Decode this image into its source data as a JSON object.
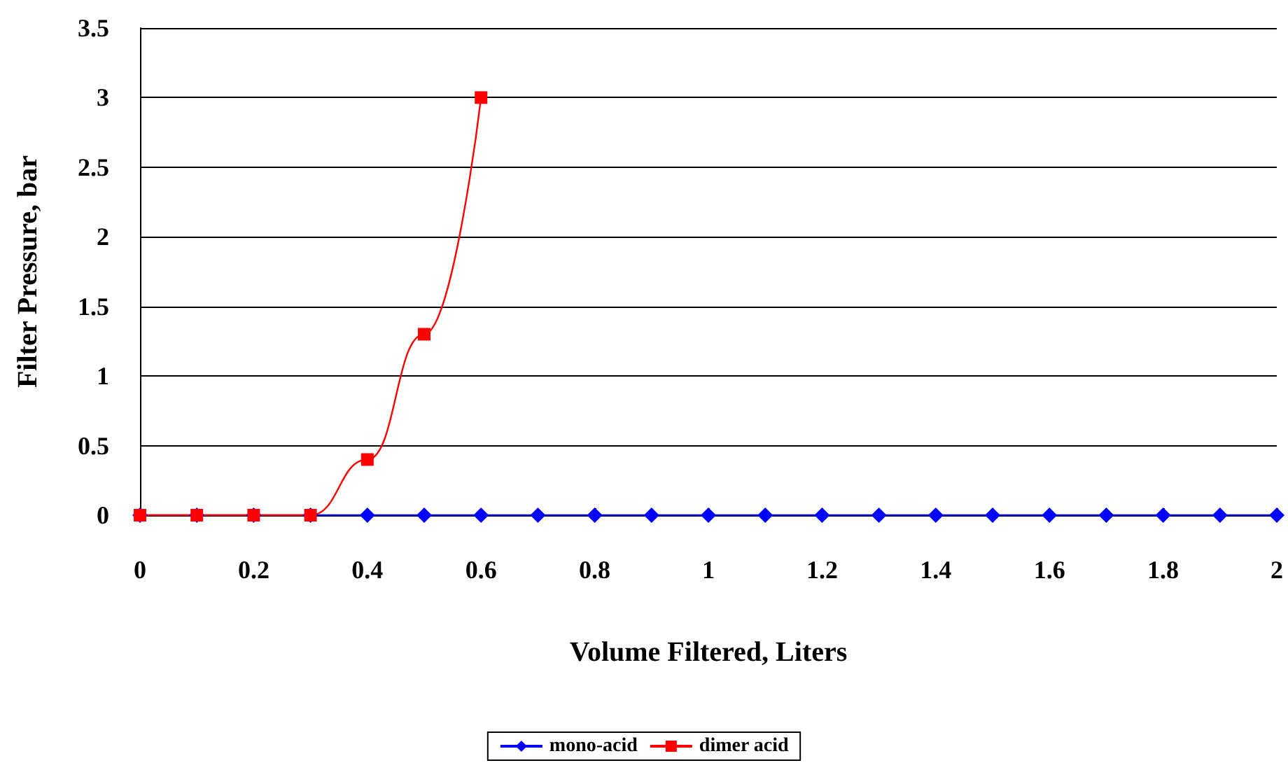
{
  "chart_data": {
    "type": "line",
    "xlabel": "Volume Filtered, Liters",
    "ylabel": "Filter Pressure, bar",
    "series": [
      {
        "name": "mono-acid",
        "color": "#0000ff",
        "marker": "diamond",
        "x": [
          0,
          0.1,
          0.2,
          0.3,
          0.4,
          0.5,
          0.6,
          0.7,
          0.8,
          0.9,
          1,
          1.1,
          1.2,
          1.3,
          1.4,
          1.5,
          1.6,
          1.7,
          1.8,
          1.9,
          2
        ],
        "values": [
          0,
          0,
          0,
          0,
          0,
          0,
          0,
          0,
          0,
          0,
          0,
          0,
          0,
          0,
          0,
          0,
          0,
          0,
          0,
          0,
          0
        ]
      },
      {
        "name": "dimer acid",
        "color": "#ff0000",
        "marker": "square",
        "x": [
          0,
          0.1,
          0.2,
          0.3,
          0.4,
          0.5,
          0.6
        ],
        "values": [
          0,
          0,
          0,
          0,
          0.4,
          1.3,
          3
        ]
      }
    ],
    "xlim": [
      0,
      2
    ],
    "xticks": [
      0,
      0.2,
      0.4,
      0.6,
      0.8,
      1,
      1.2,
      1.4,
      1.6,
      1.8,
      2
    ],
    "ylim": [
      0,
      3.5
    ],
    "yticks": [
      0,
      0.5,
      1,
      1.5,
      2,
      2.5,
      3,
      3.5
    ],
    "grid": "y",
    "legend": "bottom",
    "line_style": "solid"
  }
}
